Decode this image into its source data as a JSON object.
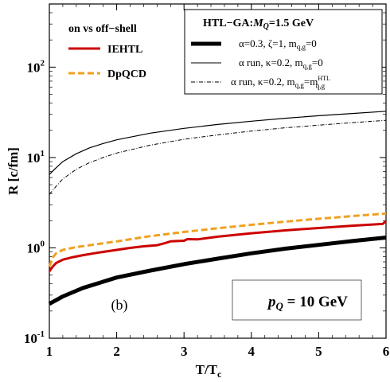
{
  "chart_data": {
    "type": "line",
    "xlabel": "T/T",
    "xlabel_sub": "c",
    "ylabel": "R [c/fm]",
    "xlim": [
      1,
      6
    ],
    "ylim": [
      0.1,
      500
    ],
    "yscale": "log",
    "x_ticks": [
      "1",
      "2",
      "3",
      "4",
      "5",
      "6"
    ],
    "y_ticks": [
      {
        "base": "10",
        "exp": "-1"
      },
      {
        "base": "10",
        "exp": "0"
      },
      {
        "base": "10",
        "exp": "1"
      },
      {
        "base": "10",
        "exp": "2"
      }
    ],
    "legend_left": {
      "title": "on vs off−shell",
      "entries": [
        "IEHTL",
        "DpQCD"
      ],
      "position": "top-left"
    },
    "legend_right": {
      "title": "HTL−GA:",
      "title_mq": "M",
      "title_mq_sub": "Q",
      "title_value": "=1.5 GeV",
      "entries": [
        "α=0.3, ζ=1, m_{q,g}=0",
        "α run, κ=0.2, m_{q,g}=0",
        "α run, κ=0.2, m_{q,g}=m_{q,g}^{HTL}"
      ],
      "entry1": {
        "a": "α=0.3, ζ=1, m",
        "sub": "q,g",
        "b": "=0"
      },
      "entry2": {
        "a": "α run, κ=0.2, m",
        "sub": "q,g",
        "b": "=0"
      },
      "entry3": {
        "a": "α run, κ=0.2, m",
        "sub": "q,g",
        "b": "=m",
        "sup": "HTL",
        "sub2": "q,g"
      },
      "position": "top-right"
    },
    "annotation_b": "(b)",
    "annotation_p": {
      "p": "p",
      "sub": "Q",
      "value": " = 10 GeV"
    },
    "series": [
      {
        "name": "IEHTL",
        "color": "#cc0000",
        "style": "solid",
        "x": [
          1.0,
          1.05,
          1.1,
          1.2,
          1.35,
          1.5,
          1.7,
          2.0,
          2.2,
          2.4,
          2.6,
          2.7,
          2.8,
          3.0,
          3.05,
          3.2,
          3.5,
          4.0,
          4.5,
          5.0,
          5.5,
          5.95,
          6.0
        ],
        "y": [
          0.55,
          0.62,
          0.68,
          0.74,
          0.79,
          0.83,
          0.88,
          0.95,
          1.0,
          1.04,
          1.07,
          1.12,
          1.18,
          1.2,
          1.25,
          1.24,
          1.33,
          1.45,
          1.56,
          1.66,
          1.76,
          1.84,
          1.98
        ]
      },
      {
        "name": "DpQCD",
        "color": "#f0a020",
        "style": "dashed",
        "x": [
          1.0,
          1.05,
          1.1,
          1.2,
          1.4,
          1.6,
          2.0,
          2.5,
          3.0,
          3.5,
          4.0,
          4.5,
          5.0,
          5.5,
          6.0
        ],
        "y": [
          0.62,
          0.78,
          0.87,
          0.95,
          1.02,
          1.07,
          1.18,
          1.35,
          1.5,
          1.65,
          1.8,
          1.95,
          2.1,
          2.25,
          2.4
        ]
      },
      {
        "name": "α=0.3, ζ=1, m_{q,g}=0",
        "color": "#000000",
        "style": "thick",
        "x": [
          1.0,
          1.2,
          1.5,
          2.0,
          2.5,
          3.0,
          3.5,
          4.0,
          4.5,
          5.0,
          5.5,
          6.0
        ],
        "y": [
          0.24,
          0.29,
          0.36,
          0.47,
          0.56,
          0.66,
          0.76,
          0.87,
          0.98,
          1.08,
          1.19,
          1.3
        ]
      },
      {
        "name": "α run, κ=0.2, m_{q,g}=0",
        "color": "#000000",
        "style": "solid",
        "x": [
          1.0,
          1.1,
          1.2,
          1.4,
          1.6,
          1.8,
          2.0,
          2.5,
          3.0,
          3.5,
          4.0,
          4.5,
          5.0,
          5.5,
          6.0
        ],
        "y": [
          6.5,
          7.7,
          9.0,
          11.0,
          12.8,
          14.3,
          15.7,
          18.6,
          21.0,
          23.2,
          25.2,
          27.2,
          29.0,
          30.7,
          32.5
        ]
      },
      {
        "name": "α run, κ=0.2, m_{q,g}=m_{q,g}^{HTL}",
        "color": "#000000",
        "style": "dashdot",
        "x": [
          1.0,
          1.1,
          1.2,
          1.4,
          1.6,
          1.8,
          2.0,
          2.5,
          3.0,
          3.5,
          4.0,
          4.5,
          5.0,
          5.5,
          6.0
        ],
        "y": [
          3.9,
          4.8,
          5.8,
          7.4,
          8.8,
          10.0,
          11.2,
          13.7,
          15.9,
          17.8,
          19.6,
          21.3,
          22.8,
          24.3,
          25.8
        ]
      }
    ]
  }
}
